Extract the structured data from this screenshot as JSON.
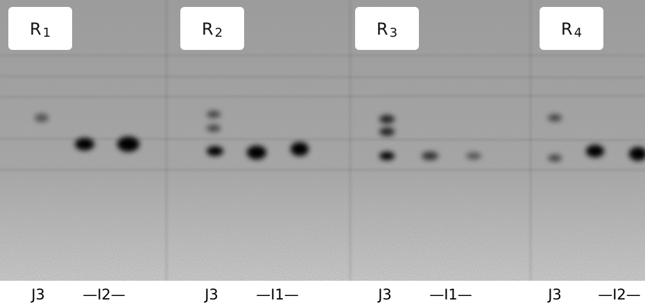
{
  "panels": [
    {
      "label": {
        "letter": "R",
        "sub": "1"
      },
      "lanes": [
        "J3",
        "—I2—"
      ]
    },
    {
      "label": {
        "letter": "R",
        "sub": "2"
      },
      "lanes": [
        "J3",
        "—I1—"
      ]
    },
    {
      "label": {
        "letter": "R",
        "sub": "3"
      },
      "lanes": [
        "J3",
        "—I1—"
      ]
    },
    {
      "label": {
        "letter": "R",
        "sub": "4"
      },
      "lanes": [
        "J3",
        "—I2—"
      ]
    }
  ]
}
